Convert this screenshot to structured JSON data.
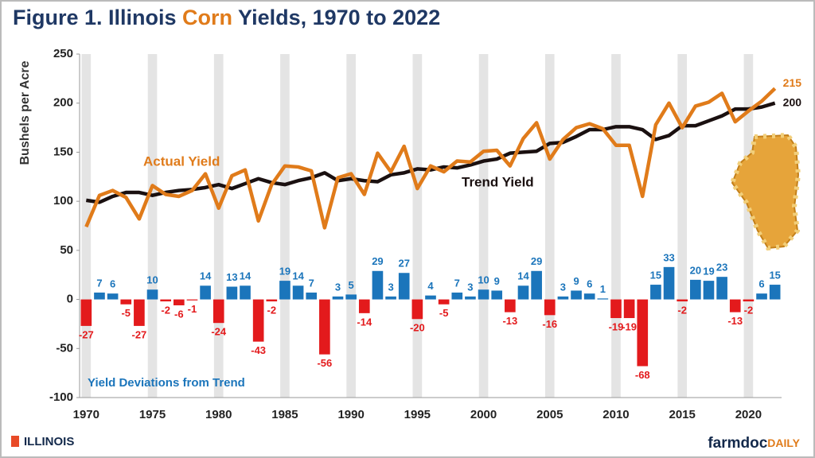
{
  "chart_data": {
    "type": "combo",
    "title": [
      "Figure 1. Illinois ",
      "Corn",
      " Yields, 1970 to 2022"
    ],
    "title_color": "#1f3864",
    "title_accent_color": "#e07b1a",
    "y_label": "Bushels per Acre",
    "x": [
      1970,
      1971,
      1972,
      1973,
      1974,
      1975,
      1976,
      1977,
      1978,
      1979,
      1980,
      1981,
      1982,
      1983,
      1984,
      1985,
      1986,
      1987,
      1988,
      1989,
      1990,
      1991,
      1992,
      1993,
      1994,
      1995,
      1996,
      1997,
      1998,
      1999,
      2000,
      2001,
      2002,
      2003,
      2004,
      2005,
      2006,
      2007,
      2008,
      2009,
      2010,
      2011,
      2012,
      2013,
      2014,
      2015,
      2016,
      2017,
      2018,
      2019,
      2020,
      2021,
      2022
    ],
    "xlim": [
      1969.5,
      2022.5
    ],
    "xticks": [
      1970,
      1975,
      1980,
      1985,
      1990,
      1995,
      2000,
      2005,
      2010,
      2015,
      2020
    ],
    "ylim": [
      -100,
      250
    ],
    "yticks": [
      -100,
      -50,
      0,
      50,
      100,
      150,
      200,
      250
    ],
    "series": [
      {
        "name": "Actual Yield",
        "type": "line",
        "color": "#e07b1a",
        "values": [
          74,
          106,
          111,
          104,
          82,
          116,
          107,
          105,
          111,
          128,
          93,
          126,
          132,
          80,
          117,
          136,
          135,
          131,
          73,
          124,
          128,
          107,
          149,
          130,
          156,
          113,
          136,
          130,
          141,
          140,
          151,
          152,
          136,
          164,
          180,
          143,
          163,
          175,
          179,
          174,
          157,
          157,
          105,
          178,
          200,
          175,
          197,
          201,
          210,
          181,
          192,
          202,
          215
        ]
      },
      {
        "name": "Trend Yield",
        "type": "line",
        "color": "#1a1010",
        "values": [
          101,
          99,
          105,
          109,
          109,
          106,
          109,
          111,
          112,
          114,
          117,
          113,
          118,
          123,
          119,
          117,
          121,
          124,
          129,
          121,
          123,
          121,
          120,
          127,
          129,
          133,
          132,
          135,
          134,
          137,
          141,
          143,
          149,
          150,
          151,
          159,
          160,
          166,
          173,
          173,
          176,
          176,
          173,
          163,
          167,
          177,
          177,
          182,
          187,
          194,
          194,
          196,
          200
        ]
      },
      {
        "name": "Yield Deviations from Trend",
        "type": "bar",
        "color": "#1b75bb",
        "negative_color": "#e31a1c",
        "values": [
          -27,
          7,
          6,
          -5,
          -27,
          10,
          -2,
          -6,
          -1,
          14,
          -24,
          13,
          14,
          -43,
          -2,
          19,
          14,
          7,
          -56,
          3,
          5,
          -14,
          29,
          3,
          27,
          -20,
          4,
          -5,
          7,
          3,
          10,
          9,
          -13,
          14,
          29,
          -16,
          3,
          9,
          6,
          1,
          -19,
          -19,
          -68,
          15,
          33,
          -2,
          20,
          19,
          23,
          -13,
          -2,
          6,
          15
        ]
      }
    ]
  },
  "footer": {
    "left": "ILLINOIS",
    "right": [
      "farmdoc",
      "DAILY"
    ]
  }
}
